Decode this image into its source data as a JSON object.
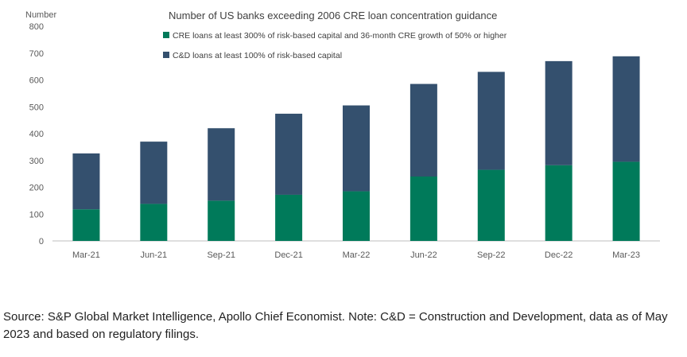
{
  "chart_data": {
    "type": "bar",
    "stacked": true,
    "title": "Number of US banks exceeding 2006 CRE loan concentration guidance",
    "ylabel": "Number",
    "ylim": [
      0,
      800
    ],
    "yticks": [
      "0",
      "100",
      "200",
      "300",
      "400",
      "500",
      "600",
      "700",
      "800"
    ],
    "categories": [
      "Mar-21",
      "Jun-21",
      "Sep-21",
      "Dec-21",
      "Mar-22",
      "Jun-22",
      "Sep-22",
      "Dec-22",
      "Mar-23"
    ],
    "series": [
      {
        "name": "CRE loans at least 300% of risk-based capital and 36-month CRE growth of 50% or higher",
        "color": "#007a5a",
        "values": [
          118,
          138,
          150,
          172,
          185,
          240,
          265,
          282,
          295
        ]
      },
      {
        "name": "C&D loans at least 100% of risk-based capital",
        "color": "#34506e",
        "values": [
          208,
          232,
          270,
          302,
          320,
          345,
          365,
          388,
          393
        ]
      }
    ],
    "grid": false,
    "legend_position": "top-left"
  },
  "source_note": "Source: S&P Global Market Intelligence, Apollo Chief Economist. Note: C&D = Construction and Development, data as of May 2023 and based on regulatory filings."
}
